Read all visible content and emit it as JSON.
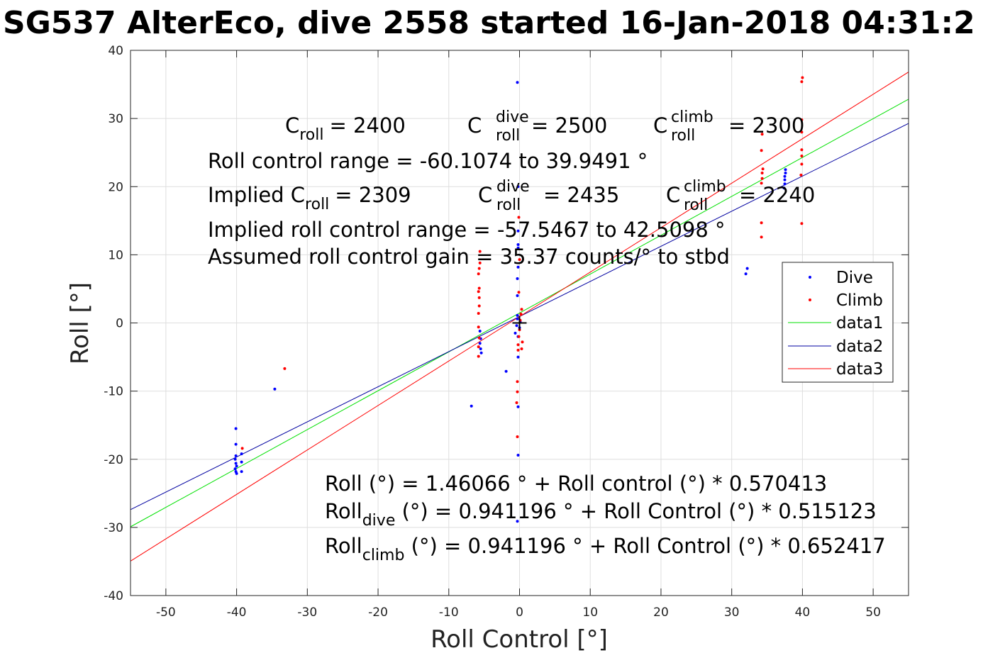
{
  "chart_data": {
    "type": "scatter",
    "title": "SG537 AlterEco, dive 2558 started 16-Jan-2018 04:31:2",
    "xlabel": "Roll Control [°]",
    "ylabel": "Roll [°]",
    "xlim": [
      -55,
      55
    ],
    "ylim": [
      -40,
      40
    ],
    "xticks": [
      -50,
      -40,
      -30,
      -20,
      -10,
      0,
      10,
      20,
      30,
      40,
      50
    ],
    "yticks": [
      -40,
      -30,
      -20,
      -10,
      0,
      10,
      20,
      30,
      40
    ],
    "grid": true,
    "legend_position": "right",
    "series": [
      {
        "name": "Dive",
        "kind": "points",
        "color": "#0000ff",
        "points": [
          [
            -40.1,
            -15.5
          ],
          [
            -40.1,
            -17.8
          ],
          [
            -40.1,
            -19.5
          ],
          [
            -40.2,
            -20.0
          ],
          [
            -40.1,
            -20.6
          ],
          [
            -40.0,
            -21.0
          ],
          [
            -40.2,
            -21.4
          ],
          [
            -40.1,
            -21.8
          ],
          [
            -40.0,
            -22.1
          ],
          [
            -39.3,
            -19.2
          ],
          [
            -39.3,
            -20.4
          ],
          [
            -39.3,
            -21.8
          ],
          [
            -34.6,
            -9.7
          ],
          [
            -6.8,
            -12.2
          ],
          [
            -5.6,
            -1.2
          ],
          [
            -5.5,
            -2.3
          ],
          [
            -5.6,
            -3.0
          ],
          [
            -5.5,
            -3.8
          ],
          [
            -5.4,
            -4.4
          ],
          [
            -1.9,
            -7.1
          ],
          [
            -0.6,
            -1.5
          ],
          [
            -0.4,
            -0.4
          ],
          [
            -0.3,
            0.6
          ],
          [
            -0.3,
            1.1
          ],
          [
            -0.3,
            4.0
          ],
          [
            -0.3,
            6.5
          ],
          [
            -0.2,
            8.2
          ],
          [
            -0.2,
            11.0
          ],
          [
            -0.2,
            11.5
          ],
          [
            -0.2,
            13.5
          ],
          [
            -0.2,
            20.0
          ],
          [
            -0.3,
            35.3
          ],
          [
            -0.2,
            -2.0
          ],
          [
            -0.2,
            -5.0
          ],
          [
            -0.2,
            -12.3
          ],
          [
            -0.2,
            -19.4
          ],
          [
            -0.3,
            -29.1
          ],
          [
            0.0,
            -0.7
          ],
          [
            0.1,
            0.2
          ],
          [
            32.0,
            7.2
          ],
          [
            32.2,
            8.0
          ],
          [
            37.4,
            19.8
          ],
          [
            37.5,
            20.4
          ],
          [
            37.5,
            21.0
          ],
          [
            37.5,
            21.5
          ],
          [
            37.6,
            22.0
          ],
          [
            37.6,
            22.5
          ]
        ]
      },
      {
        "name": "Climb",
        "kind": "points",
        "color": "#ff0000",
        "points": [
          [
            -39.2,
            -18.4
          ],
          [
            -33.2,
            -6.7
          ],
          [
            -5.8,
            -4.9
          ],
          [
            -5.8,
            -3.5
          ],
          [
            -5.7,
            -2.2
          ],
          [
            -5.8,
            -0.6
          ],
          [
            -5.8,
            1.4
          ],
          [
            -5.7,
            2.5
          ],
          [
            -5.7,
            3.7
          ],
          [
            -5.8,
            4.6
          ],
          [
            -5.7,
            5.1
          ],
          [
            -5.8,
            7.2
          ],
          [
            -5.7,
            8.0
          ],
          [
            -5.6,
            8.8
          ],
          [
            -5.6,
            10.5
          ],
          [
            -0.4,
            -11.7
          ],
          [
            -0.3,
            -16.7
          ],
          [
            -0.3,
            -10.1
          ],
          [
            -0.3,
            -8.6
          ],
          [
            -0.2,
            -4.0
          ],
          [
            -0.2,
            -3.2
          ],
          [
            -0.1,
            -2.0
          ],
          [
            0.0,
            -1.0
          ],
          [
            0.1,
            0.4
          ],
          [
            0.2,
            1.3
          ],
          [
            0.3,
            2.0
          ],
          [
            -0.1,
            4.5
          ],
          [
            0.0,
            9.3
          ],
          [
            -0.1,
            15.5
          ],
          [
            0.3,
            -3.8
          ],
          [
            0.4,
            -2.8
          ],
          [
            34.2,
            12.6
          ],
          [
            34.2,
            14.7
          ],
          [
            34.2,
            20.5
          ],
          [
            34.3,
            21.2
          ],
          [
            34.3,
            22.0
          ],
          [
            34.4,
            22.6
          ],
          [
            34.2,
            25.3
          ],
          [
            34.3,
            27.7
          ],
          [
            39.9,
            14.6
          ],
          [
            39.8,
            21.7
          ],
          [
            39.9,
            23.3
          ],
          [
            39.9,
            24.5
          ],
          [
            39.9,
            25.4
          ],
          [
            39.9,
            28.0
          ],
          [
            39.9,
            29.8
          ],
          [
            39.9,
            35.4
          ],
          [
            40.0,
            36.0
          ]
        ]
      },
      {
        "name": "data1",
        "kind": "line",
        "color": "#00e000",
        "x": [
          -55,
          55
        ],
        "y": [
          -29.91,
          32.83
        ]
      },
      {
        "name": "data2",
        "kind": "line",
        "color": "#0000a0",
        "x": [
          -55,
          55
        ],
        "y": [
          -27.39,
          29.27
        ]
      },
      {
        "name": "data3",
        "kind": "line",
        "color": "#ff0000",
        "x": [
          -55,
          55
        ],
        "y": [
          -34.94,
          36.82
        ]
      }
    ],
    "origin_marker": {
      "x": 0,
      "y": 0,
      "symbol": "+"
    },
    "annotations": {
      "c_roll": {
        "label": "C",
        "sub": "roll",
        "value": "= 2400"
      },
      "c_roll_dive": {
        "label": "C",
        "sup": "dive",
        "sub": "roll",
        "value": "= 2500"
      },
      "c_roll_climb": {
        "label": "C",
        "sup": "climb",
        "sub": "roll",
        "value": "= 2300"
      },
      "range": "Roll control range = -60.1074 to 39.9491 °",
      "implied_c_roll": {
        "prefix": "Implied C",
        "sub": "roll",
        "value": "= 2309"
      },
      "implied_c_roll_dive": {
        "label": "C",
        "sup": "dive",
        "sub": "roll",
        "value": "= 2435"
      },
      "implied_c_roll_climb": {
        "label": "C",
        "sup": "climb",
        "sub": "roll",
        "value": "= 2240"
      },
      "implied_range": "Implied roll control range = -57.5467 to 42.5098 °",
      "gain": "Assumed roll control gain = 35.37 counts/° to stbd",
      "fit_all": "Roll (°) = 1.46066 ° + Roll control (°) * 0.570413",
      "fit_dive": {
        "prefix": "Roll",
        "sub": "dive",
        "rest": " (°) = 0.941196 ° + Roll Control (°) * 0.515123"
      },
      "fit_climb": {
        "prefix": "Roll",
        "sub": "climb",
        "rest": " (°) = 0.941196 ° + Roll Control (°) * 0.652417"
      }
    }
  }
}
